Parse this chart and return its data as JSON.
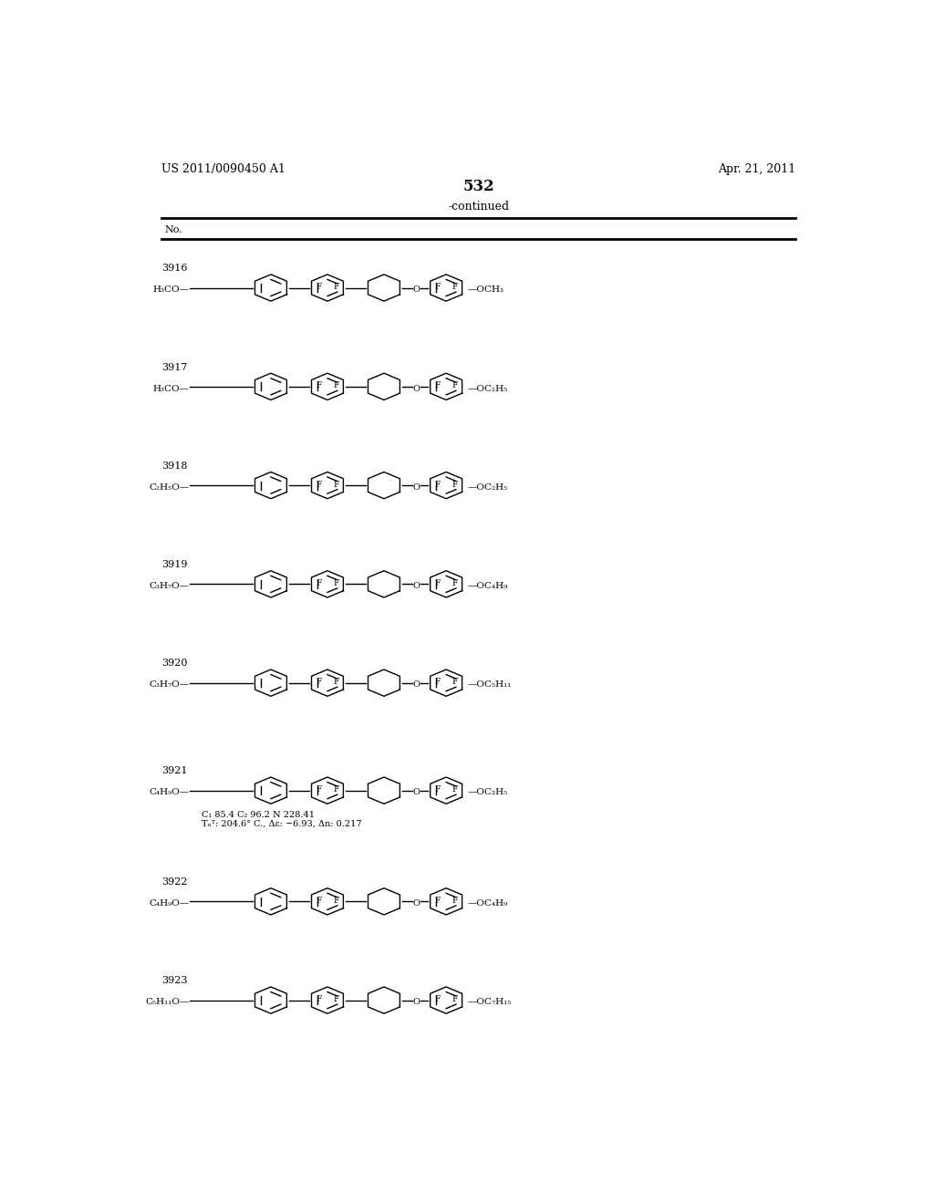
{
  "page_number": "532",
  "patent_number": "US 2011/0090450 A1",
  "patent_date": "Apr. 21, 2011",
  "table_header": "-continued",
  "col_header": "No.",
  "background_color": "#ffffff",
  "compounds": [
    {
      "number": "3916",
      "left_group": "H₃CO",
      "right_group": "OCH₃",
      "note": ""
    },
    {
      "number": "3917",
      "left_group": "H₃CO",
      "right_group": "OC₂H₅",
      "note": ""
    },
    {
      "number": "3918",
      "left_group": "C₂H₅O",
      "right_group": "OC₂H₅",
      "note": ""
    },
    {
      "number": "3919",
      "left_group": "C₃H₇O",
      "right_group": "OC₄H₉",
      "note": ""
    },
    {
      "number": "3920",
      "left_group": "C₃H₇O",
      "right_group": "OC₅H₁₁",
      "note": ""
    },
    {
      "number": "3921",
      "left_group": "C₄H₉O",
      "right_group": "OC₂H₅",
      "note": "C₁ 85.4 C₂ 96.2 N 228.41\nTₙᵀ: 204.6° C., Δε: −6.93, Δn: 0.217"
    },
    {
      "number": "3922",
      "left_group": "C₄H₉O",
      "right_group": "OC₄H₉",
      "note": ""
    },
    {
      "number": "3923",
      "left_group": "C₅H₁₁O",
      "right_group": "OC₇H₁₅",
      "note": ""
    }
  ]
}
